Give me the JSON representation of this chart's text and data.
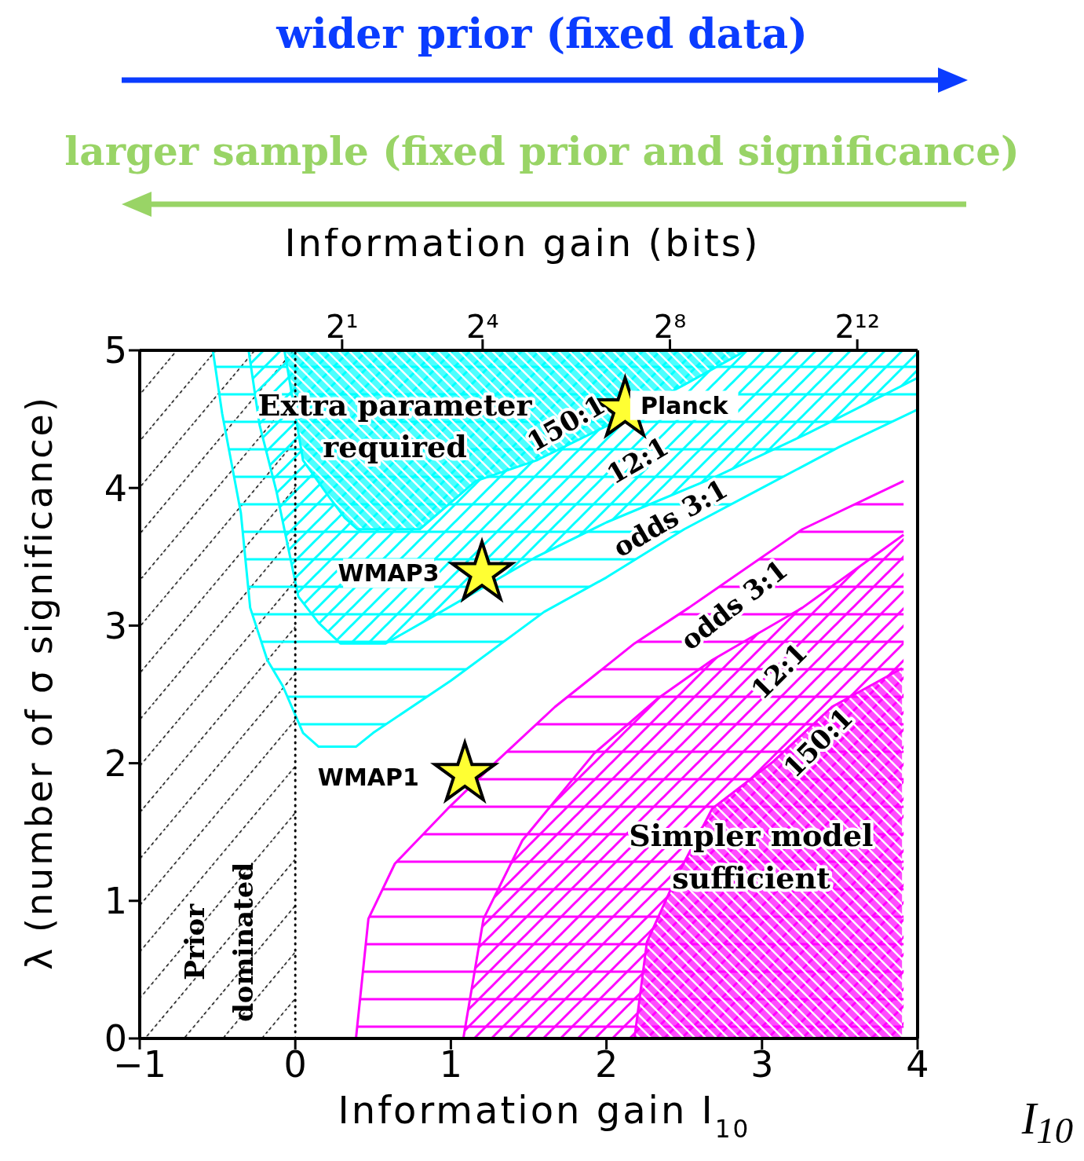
{
  "chart_data": {
    "type": "area",
    "xlabel": "Information gain I$_{10}$",
    "ylabel": "λ (number of σ significance)",
    "x2label": "Information gain (bits)",
    "xlim": [
      -1,
      4
    ],
    "xticks": [
      {
        "value": -1,
        "label": "−1"
      },
      0,
      1,
      2,
      3,
      4
    ],
    "ylim": [
      0,
      5
    ],
    "yticks": [
      0,
      1,
      2,
      3,
      4,
      5
    ],
    "x2lim": [
      0.1,
      10000
    ],
    "x2ticks": [
      {
        "value": 2,
        "label": "2¹"
      },
      {
        "value": 16,
        "label": "2⁴"
      },
      {
        "value": 256,
        "label": "2⁸"
      },
      {
        "value": 4096,
        "label": "2¹²"
      }
    ],
    "log": "x2",
    "legend": false,
    "series": [
      {
        "type": "line",
        "color": "#00ffff",
        "x": [
          -0.53,
          -0.47,
          -0.35,
          -0.29,
          -0.18,
          -0.08,
          0.05,
          0.15,
          0.39,
          0.5,
          1,
          1.6,
          2,
          2.5,
          3,
          3.5,
          4
        ],
        "values": [
          5,
          4.54,
          3.82,
          3.13,
          2.75,
          2.56,
          2.22,
          2.12,
          2.12,
          2.22,
          2.6,
          3.1,
          3.35,
          3.7,
          4,
          4.3,
          4.57
        ],
        "lower": [
          5,
          4.54,
          3.82,
          3.13,
          2.75,
          2.56,
          2.22,
          2.12,
          2.12,
          2.22,
          2.6,
          3.1,
          3.35,
          3.7,
          4,
          4.3,
          4.57
        ],
        "upper": [
          5,
          5,
          5,
          5,
          5,
          5,
          5,
          5,
          5,
          5,
          5,
          5,
          5,
          5,
          5,
          5,
          5
        ]
      },
      {
        "type": "line",
        "color": "#00ffff",
        "x": [
          -0.3,
          -0.23,
          -0.12,
          0.02,
          0.15,
          0.29,
          0.58,
          0.86,
          1.55,
          2,
          2.7,
          3.3,
          4
        ],
        "values": [
          5,
          4.46,
          3.97,
          3.21,
          3.02,
          2.87,
          2.87,
          3.05,
          3.5,
          3.75,
          4.08,
          4.4,
          4.8
        ],
        "lower": [
          5,
          4.46,
          3.97,
          3.21,
          3.02,
          2.87,
          2.87,
          3.05,
          3.5,
          3.75,
          4.08,
          4.4,
          4.8
        ],
        "upper": [
          5,
          5,
          5,
          5,
          5,
          5,
          5,
          5,
          5,
          5,
          5,
          5,
          5
        ]
      },
      {
        "type": "line",
        "color": "#00ffff",
        "x": [
          -0.07,
          0.05,
          0.22,
          0.32,
          0.4,
          0.8,
          1.16,
          1.55,
          2,
          2.5,
          2.9
        ],
        "values": [
          5,
          4.2,
          3.93,
          3.78,
          3.7,
          3.7,
          4.05,
          4.2,
          4.45,
          4.75,
          5
        ],
        "lower": [
          5,
          4.2,
          3.93,
          3.78,
          3.7,
          3.7,
          4.05,
          4.2,
          4.45,
          4.75,
          5
        ],
        "upper": [
          5,
          5,
          5,
          5,
          5,
          5,
          5,
          5,
          5,
          5,
          5
        ]
      },
      {
        "color": "#ff00ff",
        "x": [
          0.39,
          0.47,
          0.64,
          0.98,
          1.29,
          1.67,
          2.18,
          2.53,
          3.26,
          3.91
        ],
        "values": [
          0,
          0.87,
          1.27,
          1.67,
          2.01,
          2.41,
          2.87,
          3.13,
          3.7,
          4.05
        ]
      },
      {
        "color": "#ff00ff",
        "x": [
          1.08,
          1.21,
          1.46,
          1.92,
          2.33,
          2.68,
          3.26,
          3.91
        ],
        "values": [
          0,
          0.87,
          1.44,
          2.07,
          2.47,
          2.75,
          3.13,
          3.66
        ]
      },
      {
        "color": "#ff00ff",
        "x": [
          2.18,
          2.26,
          2.44,
          2.68,
          3.07,
          3.45,
          3.9
        ],
        "values": [
          0,
          0.7,
          1.15,
          1.67,
          2.01,
          2.41,
          2.69
        ]
      },
      {
        "type": "scatter",
        "marker": "star",
        "color": "#ffff33",
        "x": [
          1.09,
          1.2,
          2.12
        ],
        "values": [
          1.92,
          3.38,
          4.57
        ]
      }
    ],
    "ref_lines": [
      {
        "axis": "x",
        "value": 0,
        "color": "#000000",
        "line_style": "dotted"
      }
    ],
    "bands": [
      {
        "axis": "x",
        "from": -1,
        "to": 0,
        "label": "Prior dominated",
        "color": "#000000"
      }
    ],
    "annotations": [
      "wider prior (fixed data)",
      "larger sample (fixed prior and significance)",
      "I$_{10}$",
      "Extra parameter required",
      "Simpler model sufficient",
      "WMAP1",
      "WMAP3",
      "Planck",
      "odds 3:1",
      "12:1",
      "150:1",
      "odds 3:1",
      "12:1",
      "150:1"
    ]
  }
}
